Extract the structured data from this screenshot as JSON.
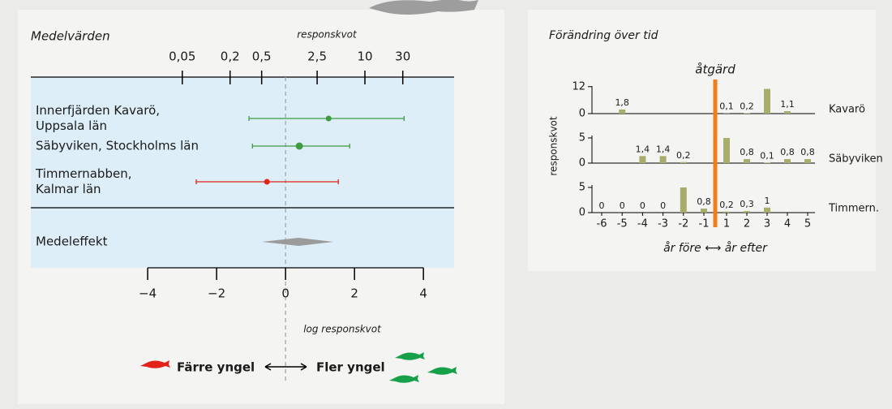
{
  "chart_data": [
    {
      "type": "forest",
      "title": "Medelvärden",
      "x2label": "responskvot",
      "xlabel": "log responskvot",
      "xlim": [
        -7.39,
        4.89
      ],
      "xticks": [
        {
          "value": -4,
          "label": "−4"
        },
        {
          "value": -2,
          "label": "−2"
        },
        0,
        2,
        4
      ],
      "x2log": true,
      "x2ticks": [
        {
          "value": 0.05,
          "label": "0,05"
        },
        {
          "value": 0.2,
          "label": "0,2"
        },
        {
          "value": 0.5,
          "label": "0,5"
        },
        {
          "value": 2.5,
          "label": "2,5"
        },
        10,
        30
      ],
      "studies": [
        {
          "name": [
            "Innerfjärden Kavarö,",
            "Uppsala län"
          ],
          "color": "#3d9c3f",
          "value": 1.25,
          "low": -1.06,
          "high": 3.44
        },
        {
          "name": [
            "Säbyviken, Stockholms län"
          ],
          "color": "#3d9c3f",
          "value": 0.4,
          "low": -0.96,
          "high": 1.86
        },
        {
          "name": [
            "Timmernabben,",
            "Kalmar län"
          ],
          "color": "#e2231a",
          "value": -0.54,
          "low": -2.59,
          "high": 1.53
        }
      ],
      "summary": {
        "name": "Medeleffekt",
        "color": "#9b9b9b",
        "value": 0.38,
        "low": -0.68,
        "high": 1.39
      },
      "legend": {
        "left": {
          "label": "Färre yngel",
          "color": "#e2231a"
        },
        "right": {
          "label": "Fler yngel",
          "color": "#17a04a"
        }
      }
    },
    {
      "type": "bar-panels",
      "title": "Förändring över tid",
      "ylabel": "responskvot",
      "xlabel": "år före ⟷ år efter",
      "annotation": "åtgärd",
      "annotation_color": "#f07d1b",
      "categories": [
        "-6",
        "-5",
        "-4",
        "-3",
        "-2",
        "-1",
        "1",
        "2",
        "3",
        "4",
        "5"
      ],
      "series": [
        {
          "name": "Kavarö",
          "color": "#a9ad6b",
          "ylim": [
            0,
            13
          ],
          "yticks": [
            0,
            12
          ],
          "values": [
            null,
            1.8,
            null,
            null,
            null,
            null,
            0.1,
            0.2,
            11,
            1.1,
            null
          ],
          "value_labels": [
            null,
            "1,8",
            null,
            null,
            null,
            null,
            "0,1",
            "0,2",
            null,
            "1,1",
            null
          ]
        },
        {
          "name": "Säbyviken",
          "color": "#a9ad6b",
          "ylim": [
            0,
            5.8
          ],
          "yticks": [
            0,
            5
          ],
          "values": [
            null,
            null,
            1.4,
            1.4,
            0.2,
            null,
            5,
            0.8,
            0.1,
            0.8,
            0.8
          ],
          "value_labels": [
            null,
            null,
            "1,4",
            "1,4",
            "0,2",
            null,
            null,
            "0,8",
            "0,1",
            "0,8",
            "0,8"
          ]
        },
        {
          "name": "Timmern.",
          "color": "#a9ad6b",
          "ylim": [
            0,
            5.8
          ],
          "yticks": [
            0,
            5
          ],
          "values": [
            0,
            0,
            0,
            0,
            5,
            0.8,
            0.2,
            0.3,
            1,
            null,
            null
          ],
          "value_labels": [
            "0",
            "0",
            "0",
            "0",
            null,
            "0,8",
            "0,2",
            "0,3",
            "1",
            null,
            null
          ]
        }
      ]
    }
  ]
}
